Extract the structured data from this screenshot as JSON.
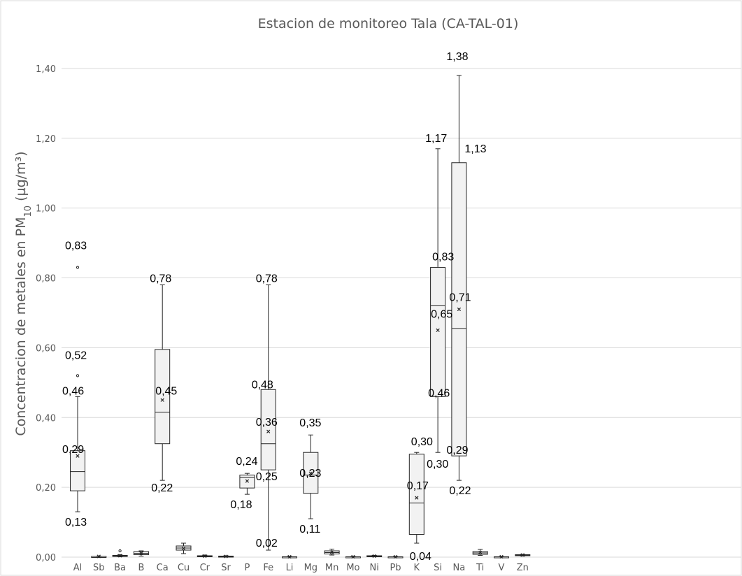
{
  "chart_data": {
    "type": "box",
    "title": "Estacion de monitoreo Tala (CA-TAL-01)",
    "ylabel_parts": {
      "before": "Concentracion de metales  en PM",
      "sub": "10",
      "after": " (µg/m³)"
    },
    "ylim": [
      0,
      1.5
    ],
    "yticks": [
      0,
      0.2,
      0.4,
      0.6,
      0.8,
      1.0,
      1.2,
      1.4
    ],
    "ytick_labels": [
      "0,00",
      "0,20",
      "0,40",
      "0,60",
      "0,80",
      "1,00",
      "1,20",
      "1,40"
    ],
    "grid": true,
    "legend": "none",
    "categories": [
      "Al",
      "Sb",
      "Ba",
      "B",
      "Ca",
      "Cu",
      "Cr",
      "Sr",
      "P",
      "Fe",
      "Li",
      "Mg",
      "Mn",
      "Mo",
      "Ni",
      "Pb",
      "K",
      "Si",
      "Na",
      "Ti",
      "V",
      "Zn"
    ],
    "boxes": [
      {
        "cat": "Al",
        "min": 0.13,
        "q1": 0.19,
        "median": 0.245,
        "q3": 0.305,
        "max": 0.46,
        "mean": 0.29,
        "outliers": [
          0.52,
          0.83
        ]
      },
      {
        "cat": "Sb",
        "min": 0.001,
        "q1": 0.001,
        "median": 0.002,
        "q3": 0.002,
        "max": 0.003,
        "mean": 0.002,
        "outliers": []
      },
      {
        "cat": "Ba",
        "min": 0.001,
        "q1": 0.002,
        "median": 0.003,
        "q3": 0.005,
        "max": 0.007,
        "mean": 0.004,
        "outliers": [
          0.018
        ]
      },
      {
        "cat": "B",
        "min": 0.003,
        "q1": 0.007,
        "median": 0.011,
        "q3": 0.016,
        "max": 0.018,
        "mean": 0.011,
        "outliers": []
      },
      {
        "cat": "Ca",
        "min": 0.22,
        "q1": 0.325,
        "median": 0.415,
        "q3": 0.595,
        "max": 0.78,
        "mean": 0.45,
        "outliers": []
      },
      {
        "cat": "Cu",
        "min": 0.01,
        "q1": 0.02,
        "median": 0.026,
        "q3": 0.032,
        "max": 0.04,
        "mean": 0.025,
        "outliers": []
      },
      {
        "cat": "Cr",
        "min": 0.001,
        "q1": 0.002,
        "median": 0.003,
        "q3": 0.004,
        "max": 0.006,
        "mean": 0.003,
        "outliers": []
      },
      {
        "cat": "Sr",
        "min": 0.001,
        "q1": 0.002,
        "median": 0.002,
        "q3": 0.003,
        "max": 0.004,
        "mean": 0.002,
        "outliers": []
      },
      {
        "cat": "P",
        "min": 0.18,
        "q1": 0.198,
        "median": 0.228,
        "q3": 0.235,
        "max": 0.24,
        "mean": 0.218,
        "outliers": []
      },
      {
        "cat": "Fe",
        "min": 0.02,
        "q1": 0.25,
        "median": 0.325,
        "q3": 0.48,
        "max": 0.78,
        "mean": 0.36,
        "outliers": []
      },
      {
        "cat": "Li",
        "min": 0.0,
        "q1": 0.001,
        "median": 0.001,
        "q3": 0.001,
        "max": 0.002,
        "mean": 0.001,
        "outliers": []
      },
      {
        "cat": "Mg",
        "min": 0.11,
        "q1": 0.183,
        "median": 0.235,
        "q3": 0.3,
        "max": 0.35,
        "mean": 0.24,
        "outliers": []
      },
      {
        "cat": "Mn",
        "min": 0.006,
        "q1": 0.009,
        "median": 0.013,
        "q3": 0.018,
        "max": 0.023,
        "mean": 0.014,
        "outliers": []
      },
      {
        "cat": "Mo",
        "min": 0.0,
        "q1": 0.001,
        "median": 0.001,
        "q3": 0.001,
        "max": 0.002,
        "mean": 0.001,
        "outliers": []
      },
      {
        "cat": "Ni",
        "min": 0.001,
        "q1": 0.002,
        "median": 0.003,
        "q3": 0.004,
        "max": 0.005,
        "mean": 0.003,
        "outliers": []
      },
      {
        "cat": "Pb",
        "min": 0.0,
        "q1": 0.001,
        "median": 0.001,
        "q3": 0.001,
        "max": 0.002,
        "mean": 0.001,
        "outliers": []
      },
      {
        "cat": "K",
        "min": 0.04,
        "q1": 0.065,
        "median": 0.155,
        "q3": 0.295,
        "max": 0.3,
        "mean": 0.17,
        "outliers": []
      },
      {
        "cat": "Si",
        "min": 0.3,
        "q1": 0.46,
        "median": 0.72,
        "q3": 0.83,
        "max": 1.17,
        "mean": 0.65,
        "outliers": []
      },
      {
        "cat": "Na",
        "min": 0.22,
        "q1": 0.29,
        "median": 0.655,
        "q3": 1.13,
        "max": 1.38,
        "mean": 0.71,
        "outliers": []
      },
      {
        "cat": "Ti",
        "min": 0.005,
        "q1": 0.008,
        "median": 0.012,
        "q3": 0.016,
        "max": 0.022,
        "mean": 0.013,
        "outliers": []
      },
      {
        "cat": "V",
        "min": 0.0,
        "q1": 0.001,
        "median": 0.001,
        "q3": 0.001,
        "max": 0.002,
        "mean": 0.001,
        "outliers": []
      },
      {
        "cat": "Zn",
        "min": 0.003,
        "q1": 0.005,
        "median": 0.006,
        "q3": 0.007,
        "max": 0.008,
        "mean": 0.006,
        "outliers": []
      }
    ],
    "annotations": [
      {
        "cat": "Al",
        "text": "0,83",
        "value": 0.83,
        "anchor": "start",
        "dx": -18,
        "dy": -26
      },
      {
        "cat": "Al",
        "text": "0,52",
        "value": 0.52,
        "anchor": "start",
        "dx": -18,
        "dy": -24
      },
      {
        "cat": "Al",
        "text": "0,46",
        "value": 0.46,
        "anchor": "start",
        "dx": -22,
        "dy": -3
      },
      {
        "cat": "Al",
        "text": "0,29",
        "value": 0.29,
        "anchor": "start",
        "dx": -22,
        "dy": -4
      },
      {
        "cat": "Al",
        "text": "0,13",
        "value": 0.13,
        "anchor": "start",
        "dx": -18,
        "dy": 20
      },
      {
        "cat": "Ca",
        "text": "0,78",
        "value": 0.78,
        "anchor": "start",
        "dx": -18,
        "dy": -4
      },
      {
        "cat": "Ca",
        "text": "0,45",
        "value": 0.45,
        "anchor": "start",
        "dx": -10,
        "dy": -8
      },
      {
        "cat": "Ca",
        "text": "0,22",
        "value": 0.22,
        "anchor": "start",
        "dx": -16,
        "dy": 16
      },
      {
        "cat": "P",
        "text": "0,24",
        "value": 0.24,
        "anchor": "start",
        "dx": -16,
        "dy": -12
      },
      {
        "cat": "P",
        "text": "0,18",
        "value": 0.18,
        "anchor": "start",
        "dx": -24,
        "dy": 20
      },
      {
        "cat": "Fe",
        "text": "0,78",
        "value": 0.78,
        "anchor": "start",
        "dx": -18,
        "dy": -4
      },
      {
        "cat": "Fe",
        "text": "0,48",
        "value": 0.48,
        "anchor": "start",
        "dx": -24,
        "dy": -2
      },
      {
        "cat": "Fe",
        "text": "0,36",
        "value": 0.36,
        "anchor": "start",
        "dx": -18,
        "dy": -8
      },
      {
        "cat": "Fe",
        "text": "0,25",
        "value": 0.25,
        "anchor": "start",
        "dx": -18,
        "dy": 15
      },
      {
        "cat": "Fe",
        "text": "0,02",
        "value": 0.02,
        "anchor": "start",
        "dx": -18,
        "dy": -5
      },
      {
        "cat": "Mg",
        "text": "0,35",
        "value": 0.35,
        "anchor": "start",
        "dx": -16,
        "dy": -12
      },
      {
        "cat": "Mg",
        "text": "0,23",
        "value": 0.23,
        "anchor": "start",
        "dx": -16,
        "dy": 0
      },
      {
        "cat": "Mg",
        "text": "0,11",
        "value": 0.11,
        "anchor": "start",
        "dx": -16,
        "dy": 20
      },
      {
        "cat": "K",
        "text": "0,30",
        "value": 0.3,
        "anchor": "start",
        "dx": -8,
        "dy": -10
      },
      {
        "cat": "K",
        "text": "0,17",
        "value": 0.17,
        "anchor": "start",
        "dx": -14,
        "dy": -12
      },
      {
        "cat": "K",
        "text": "0,04",
        "value": 0.04,
        "anchor": "start",
        "dx": -10,
        "dy": 24
      },
      {
        "cat": "Si",
        "text": "1,17",
        "value": 1.17,
        "anchor": "start",
        "dx": -18,
        "dy": -10
      },
      {
        "cat": "Si",
        "text": "0,83",
        "value": 0.83,
        "anchor": "start",
        "dx": -8,
        "dy": -10
      },
      {
        "cat": "Si",
        "text": "0,65",
        "value": 0.65,
        "anchor": "start",
        "dx": -10,
        "dy": -18
      },
      {
        "cat": "Si",
        "text": "0,46",
        "value": 0.46,
        "anchor": "start",
        "dx": -14,
        "dy": 0
      },
      {
        "cat": "Si",
        "text": "0,30",
        "value": 0.3,
        "anchor": "start",
        "dx": -16,
        "dy": 22
      },
      {
        "cat": "Na",
        "text": "1,38",
        "value": 1.38,
        "anchor": "start",
        "dx": -18,
        "dy": -22
      },
      {
        "cat": "Na",
        "text": "1,13",
        "value": 1.13,
        "anchor": "start",
        "dx": 8,
        "dy": -15
      },
      {
        "cat": "Na",
        "text": "0,71",
        "value": 0.71,
        "anchor": "start",
        "dx": -14,
        "dy": -12
      },
      {
        "cat": "Na",
        "text": "0,29",
        "value": 0.29,
        "anchor": "start",
        "dx": -18,
        "dy": -3
      },
      {
        "cat": "Na",
        "text": "0,22",
        "value": 0.22,
        "anchor": "start",
        "dx": -14,
        "dy": 20
      }
    ]
  }
}
